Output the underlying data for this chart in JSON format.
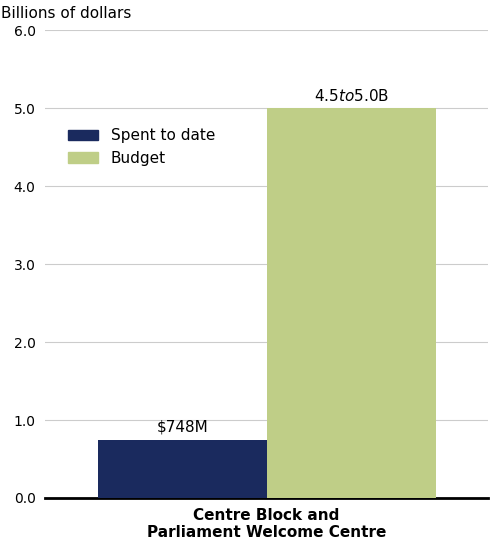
{
  "title_ylabel": "Billions of dollars",
  "categories": [
    "Centre Block and\nParliament Welcome Centre"
  ],
  "spent_values": [
    0.748
  ],
  "budget_values": [
    5.0
  ],
  "spent_label": "Spent to date",
  "budget_label": "Budget",
  "spent_color": "#1a2a5e",
  "budget_color": "#bfce87",
  "spent_annotation": "$748M",
  "budget_annotation": "$4.5 to $5.0B",
  "ylim": [
    0,
    6.0
  ],
  "yticks": [
    0.0,
    1.0,
    2.0,
    3.0,
    4.0,
    5.0,
    6.0
  ],
  "ytick_labels": [
    "0.0",
    "1.0",
    "2.0",
    "3.0",
    "4.0",
    "5.0",
    "6.0"
  ],
  "bar_width": 0.42,
  "xlabel_fontsize": 11,
  "ylabel_fontsize": 11,
  "annotation_fontsize": 11,
  "tick_fontsize": 10,
  "legend_fontsize": 11,
  "background_color": "#ffffff"
}
